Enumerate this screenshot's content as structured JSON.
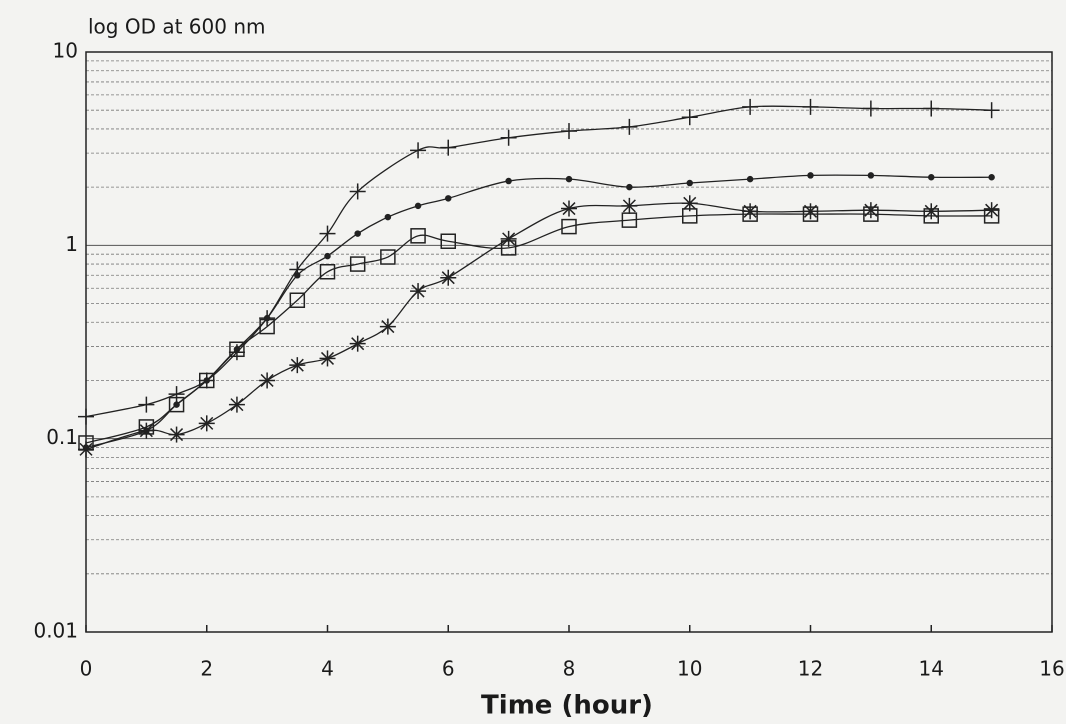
{
  "chart_data": {
    "type": "line",
    "y_label": "log OD at 600 nm",
    "x_label": "Time (hour)",
    "xlim": [
      0,
      16
    ],
    "xticks": [
      0,
      2,
      4,
      6,
      8,
      10,
      12,
      14,
      16
    ],
    "ylim": [
      0.01,
      10
    ],
    "yticks": [
      0.01,
      0.1,
      1,
      10
    ],
    "log_y": true,
    "grid": true,
    "minor_grid": true,
    "series": [
      {
        "color": "#222222",
        "marker": "plus",
        "x": [
          0,
          1,
          1.5,
          2,
          2.5,
          3,
          3.5,
          4,
          4.5,
          5.5,
          6,
          7,
          8,
          9,
          10,
          11,
          12,
          13,
          14,
          15
        ],
        "values": [
          0.13,
          0.15,
          0.17,
          0.2,
          0.28,
          0.42,
          0.75,
          1.15,
          1.9,
          3.1,
          3.2,
          3.6,
          3.9,
          4.1,
          4.6,
          5.2,
          5.2,
          5.1,
          5.1,
          5.0
        ]
      },
      {
        "color": "#222222",
        "marker": "dot",
        "x": [
          0,
          1,
          1.5,
          2,
          2.5,
          3,
          3.5,
          4,
          4.5,
          5,
          5.5,
          6,
          7,
          8,
          9,
          10,
          11,
          12,
          13,
          14,
          15
        ],
        "values": [
          0.09,
          0.11,
          0.15,
          0.2,
          0.29,
          0.42,
          0.7,
          0.88,
          1.15,
          1.4,
          1.6,
          1.75,
          2.15,
          2.2,
          2.0,
          2.1,
          2.2,
          2.3,
          2.3,
          2.25,
          2.25
        ]
      },
      {
        "color": "#222222",
        "marker": "square",
        "x": [
          0,
          1,
          1.5,
          2,
          2.5,
          3,
          3.5,
          4,
          4.5,
          5,
          5.5,
          6,
          7,
          8,
          9,
          10,
          11,
          12,
          13,
          14,
          15
        ],
        "values": [
          0.095,
          0.115,
          0.15,
          0.2,
          0.29,
          0.38,
          0.52,
          0.73,
          0.8,
          0.87,
          1.12,
          1.05,
          0.97,
          1.25,
          1.35,
          1.42,
          1.45,
          1.45,
          1.45,
          1.42,
          1.42
        ]
      },
      {
        "color": "#222222",
        "marker": "asterisk",
        "x": [
          0,
          1,
          1.5,
          2,
          2.5,
          3,
          3.5,
          4,
          4.5,
          5,
          5.5,
          6,
          7,
          8,
          9,
          10,
          11,
          12,
          13,
          14,
          15
        ],
        "values": [
          0.088,
          0.11,
          0.105,
          0.12,
          0.15,
          0.2,
          0.24,
          0.26,
          0.31,
          0.38,
          0.58,
          0.68,
          1.08,
          1.55,
          1.6,
          1.65,
          1.5,
          1.5,
          1.52,
          1.5,
          1.52
        ]
      }
    ]
  }
}
